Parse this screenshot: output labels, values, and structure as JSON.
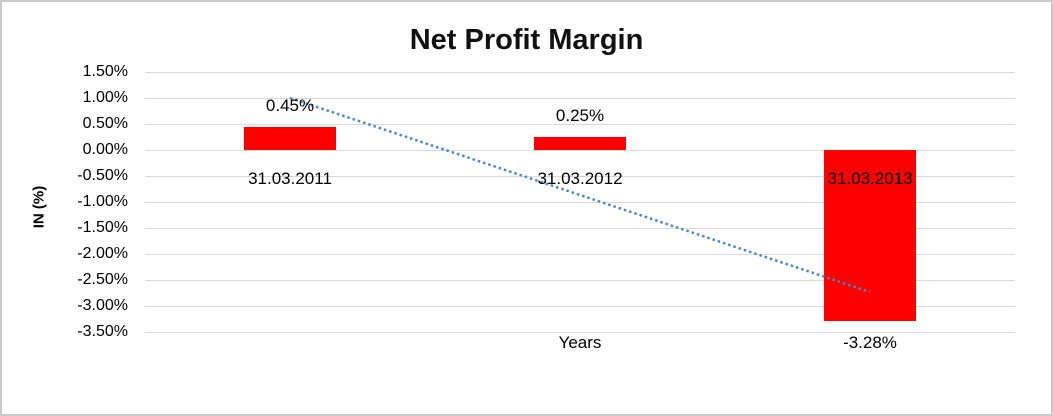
{
  "chart_data": {
    "type": "bar",
    "title": "Net Profit Margin",
    "xlabel": "Years",
    "ylabel": "IN (%)",
    "categories": [
      "31.03.2011",
      "31.03.2012",
      "31.03.2013"
    ],
    "values": [
      0.45,
      0.25,
      -3.28
    ],
    "data_labels": [
      "0.45%",
      "0.25%",
      "-3.28%"
    ],
    "ylim": [
      -3.5,
      1.5
    ],
    "ytick_step": 0.5,
    "ytick_labels": [
      "1.50%",
      "1.00%",
      "0.50%",
      "0.00%",
      "-0.50%",
      "-1.00%",
      "-1.50%",
      "-2.00%",
      "-2.50%",
      "-3.00%",
      "-3.50%"
    ],
    "grid": true,
    "legend": "none",
    "trendline": {
      "type": "linear",
      "style": "dotted",
      "start": 1.0,
      "end": -2.73
    }
  },
  "colors": {
    "bar": "#ff0000",
    "gridline": "#d9d9d9",
    "trendline": "#4a86c8",
    "frame_border": "#c9c9c9",
    "text": "#000000",
    "title": "#111111",
    "background": "#ffffff"
  }
}
